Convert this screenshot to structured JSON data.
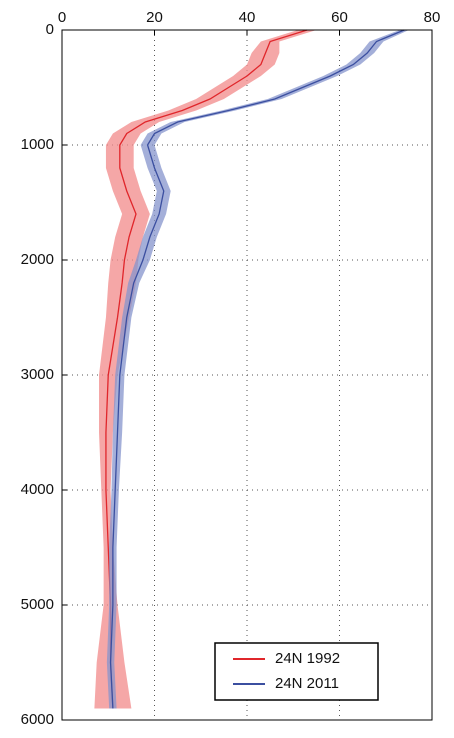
{
  "chart_data": {
    "type": "line",
    "y_inverted": true,
    "grid": true,
    "y": [
      0,
      100,
      200,
      300,
      400,
      500,
      600,
      700,
      800,
      900,
      1000,
      1200,
      1400,
      1600,
      1800,
      2000,
      2200,
      2500,
      3000,
      3500,
      4000,
      4500,
      5000,
      5500,
      5900
    ],
    "xlim": [
      0,
      80
    ],
    "xticks": [
      0,
      20,
      40,
      60,
      80
    ],
    "ylim": [
      0,
      6000
    ],
    "yticks": [
      0,
      1000,
      2000,
      3000,
      4000,
      5000,
      6000
    ],
    "legend": "lower right",
    "series": [
      {
        "name": "24N 1992",
        "color": "#e0262b",
        "band_color": "#f28a8a",
        "values": [
          53,
          45,
          44,
          43,
          40,
          36,
          32,
          26,
          18,
          14,
          12.5,
          12.5,
          14,
          16,
          14.5,
          13.5,
          13,
          12,
          10,
          9.5,
          9.5,
          10,
          10.5,
          10.5,
          11
        ],
        "errors": [
          2,
          2,
          3,
          3,
          3,
          3,
          3,
          3,
          3,
          3,
          3,
          3,
          3,
          3,
          3,
          3,
          3,
          2.5,
          2,
          1.5,
          1,
          1,
          1.5,
          3,
          4
        ]
      },
      {
        "name": "24N 2011",
        "color": "#3b4fa0",
        "band_color": "#8594cc",
        "values": [
          74,
          68,
          66,
          63,
          58,
          52,
          46,
          36,
          25,
          20,
          18.5,
          20,
          22,
          21,
          19,
          17.5,
          15.5,
          14,
          12.5,
          12,
          11.5,
          11,
          11,
          10.5,
          11
        ],
        "errors": [
          1,
          1.5,
          1.5,
          1.5,
          1.5,
          1.5,
          1.5,
          1.5,
          1.5,
          1.5,
          1.5,
          1.5,
          1.5,
          1.5,
          1.5,
          1.5,
          1.2,
          1,
          1,
          1,
          0.8,
          0.8,
          0.8,
          0.8,
          0.8
        ]
      }
    ]
  }
}
